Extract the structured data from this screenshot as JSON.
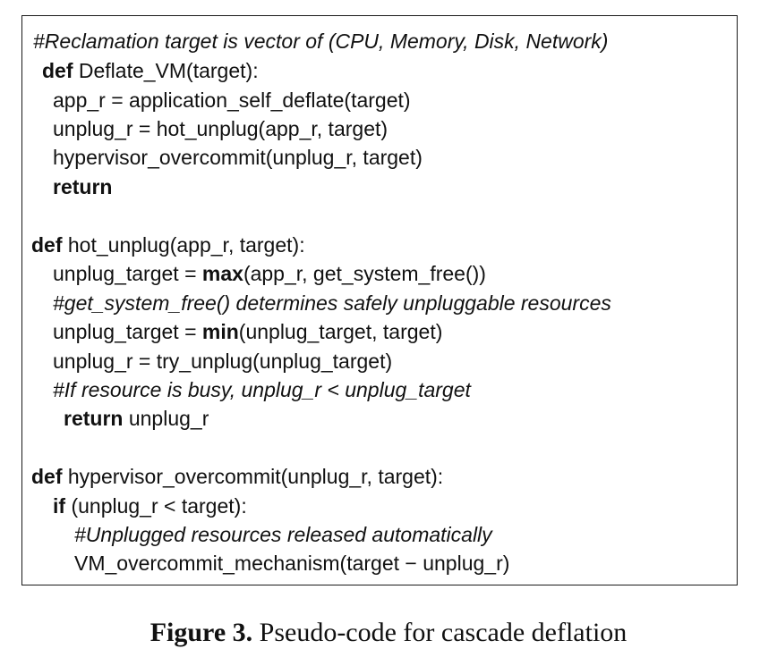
{
  "code": {
    "l1_comment": "#Reclamation target is vector of (CPU, Memory, Disk, Network)",
    "l2_kw": "def",
    "l2_rest": " Deflate_VM(target):",
    "l3": "app_r = application_self_deflate(target)",
    "l4": "unplug_r = hot_unplug(app_r, target)",
    "l5": "hypervisor_overcommit(unplug_r, target)",
    "l6_kw": "return",
    "l7_kw": "def",
    "l7_rest": " hot_unplug(app_r, target):",
    "l8_pre": "unplug_target = ",
    "l8_kw": "max",
    "l8_post": "(app_r, get_system_free())",
    "l9_comment": "#get_system_free() determines safely unpluggable resources",
    "l10_pre": "unplug_target = ",
    "l10_kw": "min",
    "l10_post": "(unplug_target, target)",
    "l11": "unplug_r = try_unplug(unplug_target)",
    "l12_comment": "#If resource is busy, unplug_r < unplug_target",
    "l13_kw": "return",
    "l13_rest": " unplug_r",
    "l14_kw": "def",
    "l14_rest": " hypervisor_overcommit(unplug_r, target):",
    "l15_kw": "if",
    "l15_rest": " (unplug_r < target):",
    "l16_comment": "#Unplugged resources released automatically",
    "l17": "VM_overcommit_mechanism(target − unplug_r)"
  },
  "caption": {
    "label": "Figure 3.",
    "text": " Pseudo-code for cascade deflation"
  }
}
